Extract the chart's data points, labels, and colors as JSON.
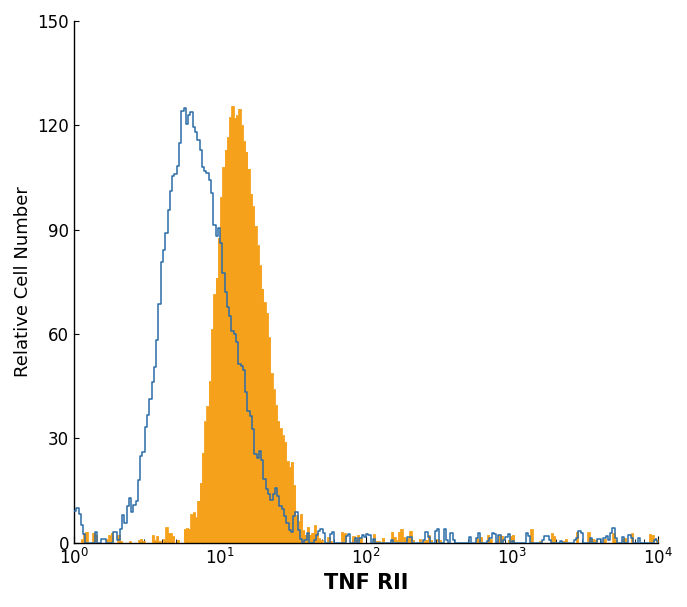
{
  "xlabel": "TNF RII",
  "ylabel": "Relative Cell Number",
  "xlim_log": [
    1,
    10000
  ],
  "ylim": [
    0,
    150
  ],
  "yticks": [
    0,
    30,
    60,
    90,
    120,
    150
  ],
  "blue_color": "#2b6ca8",
  "orange_color": "#f5a11c",
  "background_color": "#ffffff",
  "xlabel_fontsize": 15,
  "ylabel_fontsize": 13,
  "tick_fontsize": 12,
  "n_bins": 256
}
